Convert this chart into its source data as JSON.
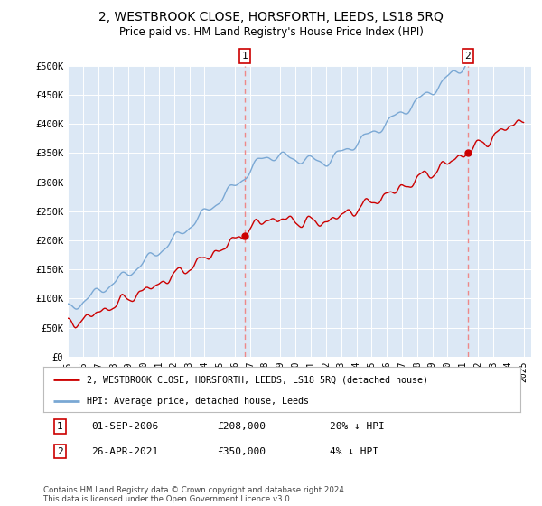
{
  "title": "2, WESTBROOK CLOSE, HORSFORTH, LEEDS, LS18 5RQ",
  "subtitle": "Price paid vs. HM Land Registry's House Price Index (HPI)",
  "bg_color": "#dce8f5",
  "hpi_color": "#7aa8d4",
  "price_color": "#cc0000",
  "dashed_color": "#ee8888",
  "ylim": [
    0,
    500000
  ],
  "yticks": [
    0,
    50000,
    100000,
    150000,
    200000,
    250000,
    300000,
    350000,
    400000,
    450000,
    500000
  ],
  "ytick_labels": [
    "£0",
    "£50K",
    "£100K",
    "£150K",
    "£200K",
    "£250K",
    "£300K",
    "£350K",
    "£400K",
    "£450K",
    "£500K"
  ],
  "sale1_x": 2006.667,
  "sale1_price": 208000,
  "sale1_date": "01-SEP-2006",
  "sale1_pct": "20% ↓ HPI",
  "sale2_x": 2021.333,
  "sale2_price": 350000,
  "sale2_date": "26-APR-2021",
  "sale2_pct": "4% ↓ HPI",
  "legend_label1": "2, WESTBROOK CLOSE, HORSFORTH, LEEDS, LS18 5RQ (detached house)",
  "legend_label2": "HPI: Average price, detached house, Leeds",
  "footnote": "Contains HM Land Registry data © Crown copyright and database right 2024.\nThis data is licensed under the Open Government Licence v3.0.",
  "xlim": [
    1995,
    2025.5
  ],
  "xtick_years": [
    1995,
    1996,
    1997,
    1998,
    1999,
    2000,
    2001,
    2002,
    2003,
    2004,
    2005,
    2006,
    2007,
    2008,
    2009,
    2010,
    2011,
    2012,
    2013,
    2014,
    2015,
    2016,
    2017,
    2018,
    2019,
    2020,
    2021,
    2022,
    2023,
    2024,
    2025
  ]
}
